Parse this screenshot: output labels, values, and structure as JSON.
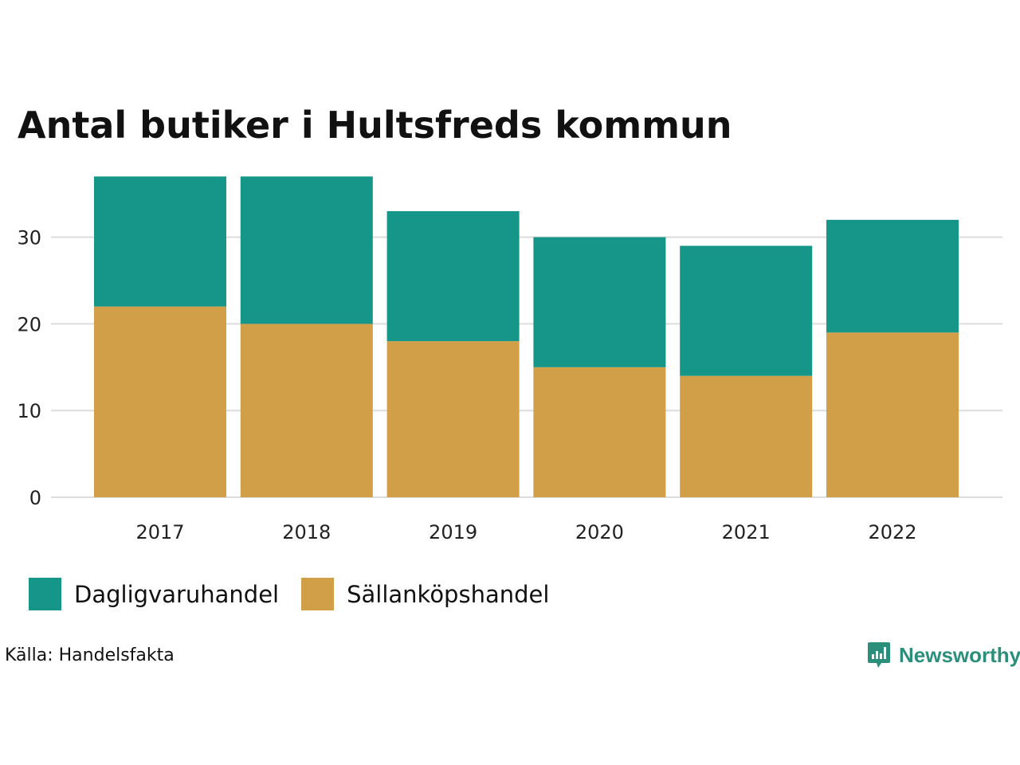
{
  "title": "Antal butiker i Hultsfreds kommun",
  "source": "Källa: Handelsfakta",
  "brand": "Newsworthy",
  "colors": {
    "daglig": "#159688",
    "sallan": "#d19f48",
    "grid": "#dcdcdc",
    "brand": "#2c8f7b"
  },
  "chart_data": {
    "type": "bar",
    "stacked": true,
    "title": "Antal butiker i Hultsfreds kommun",
    "xlabel": "",
    "ylabel": "",
    "categories": [
      "2017",
      "2018",
      "2019",
      "2020",
      "2021",
      "2022"
    ],
    "series": [
      {
        "name": "Sällanköpshandel",
        "values": [
          22,
          20,
          18,
          15,
          14,
          19
        ]
      },
      {
        "name": "Dagligvaruhandel",
        "values": [
          15,
          17,
          15,
          15,
          15,
          13
        ]
      }
    ],
    "yticks": [
      0,
      10,
      20,
      30
    ],
    "ylim": [
      0,
      37
    ],
    "grid": true,
    "legend_position": "bottom-left"
  },
  "legend": [
    {
      "label": "Dagligvaruhandel",
      "color": "#159688"
    },
    {
      "label": "Sällanköpshandel",
      "color": "#d19f48"
    }
  ]
}
